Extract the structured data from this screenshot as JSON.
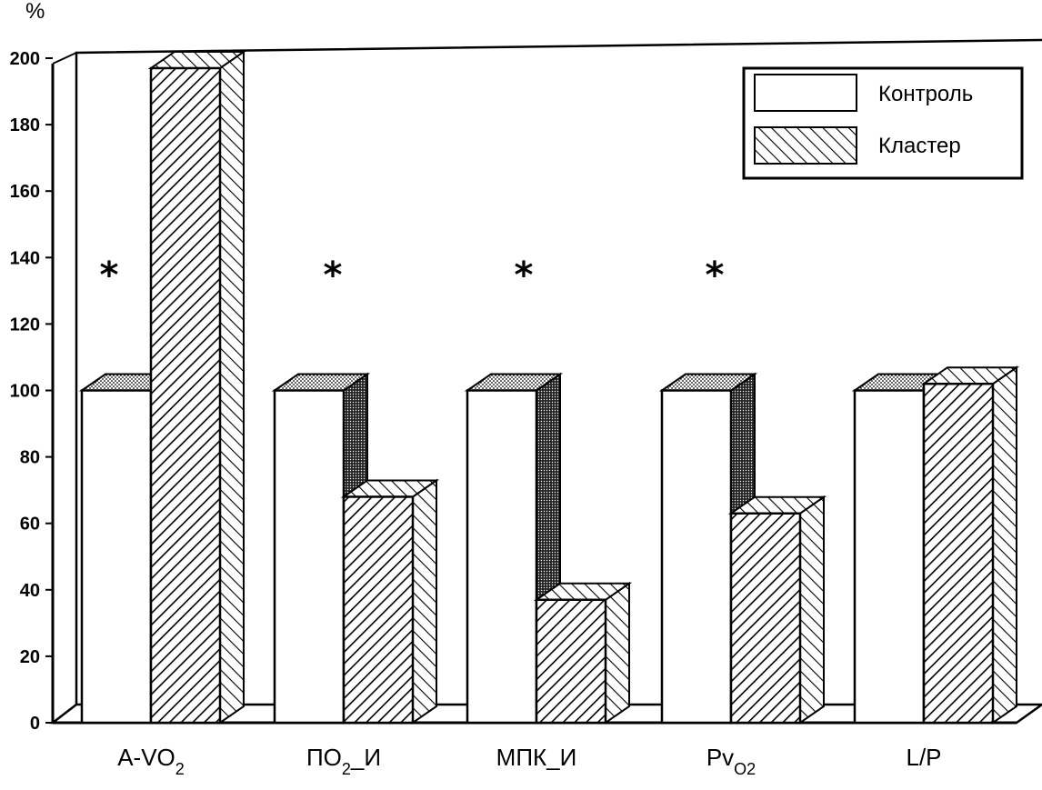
{
  "chart_data": {
    "type": "bar",
    "title": "",
    "xlabel": "",
    "ylabel": "%",
    "ylim": [
      0,
      200
    ],
    "yticks": [
      "0",
      "20",
      "40",
      "60",
      "80",
      "100",
      "120",
      "140",
      "160",
      "180",
      "200"
    ],
    "categories": [
      {
        "base": "A-VO",
        "sub": "2",
        "suffix": ""
      },
      {
        "base": "ПО",
        "sub": "2",
        "suffix": "_И"
      },
      {
        "base": "МПК_И",
        "sub": "",
        "suffix": ""
      },
      {
        "base": "Pv",
        "sub": "O2",
        "suffix": ""
      },
      {
        "base": "L/P",
        "sub": "",
        "suffix": ""
      }
    ],
    "series": [
      {
        "name": "Контроль",
        "values": [
          100,
          100,
          100,
          100,
          100
        ],
        "pattern": "plain-white"
      },
      {
        "name": "Кластер",
        "values": [
          197,
          68,
          37,
          63,
          102
        ],
        "pattern": "diagonal-hatch"
      }
    ],
    "significance_markers": [
      "*",
      "*",
      "*",
      "*",
      ""
    ],
    "legend_position": "top-right",
    "grid": false,
    "style": "3d-bars"
  }
}
